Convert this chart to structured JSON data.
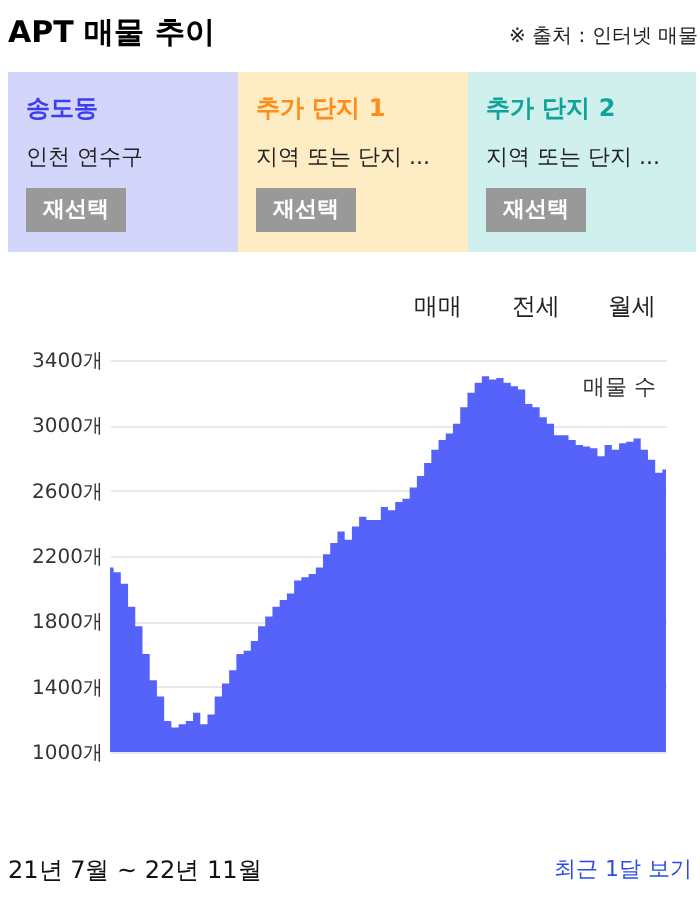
{
  "chart_data": {
    "type": "area",
    "title": "APT 매물 추이",
    "categories": [
      null,
      null,
      null,
      null,
      null,
      null,
      null,
      null,
      null,
      null,
      null,
      null,
      null,
      null,
      null,
      null,
      null,
      null,
      null,
      null,
      null,
      null,
      null,
      null,
      null,
      null,
      null,
      null,
      null,
      null,
      null,
      null,
      null,
      null,
      null,
      null,
      null,
      null,
      null,
      null,
      null,
      null,
      null,
      null,
      null,
      null,
      null,
      null,
      null,
      null,
      null,
      null,
      null,
      null,
      null,
      null,
      null,
      null,
      null,
      null,
      null,
      null,
      null,
      null,
      null,
      null,
      null,
      null,
      null,
      null,
      null,
      null,
      null,
      null,
      null,
      null,
      null,
      null
    ],
    "series": [
      {
        "name": "매물 수",
        "color": "#5563fa",
        "values": [
          2130,
          2100,
          2030,
          1890,
          1770,
          1600,
          1440,
          1340,
          1190,
          1150,
          1170,
          1190,
          1240,
          1170,
          1230,
          1340,
          1420,
          1500,
          1600,
          1620,
          1680,
          1770,
          1830,
          1890,
          1930,
          1970,
          2050,
          2070,
          2090,
          2130,
          2210,
          2280,
          2350,
          2300,
          2380,
          2440,
          2420,
          2420,
          2500,
          2480,
          2530,
          2550,
          2620,
          2690,
          2770,
          2850,
          2910,
          2950,
          3010,
          3110,
          3200,
          3260,
          3300,
          3280,
          3290,
          3260,
          3240,
          3220,
          3130,
          3110,
          3050,
          3010,
          2940,
          2940,
          2910,
          2880,
          2870,
          2860,
          2810,
          2880,
          2850,
          2890,
          2900,
          2920,
          2850,
          2790,
          2710,
          2730
        ]
      }
    ],
    "ylim": [
      1000,
      3400
    ],
    "yticks": [
      {
        "value": 1000,
        "label": "1000개"
      },
      {
        "value": 1400,
        "label": "1400개"
      },
      {
        "value": 1800,
        "label": "1800개"
      },
      {
        "value": 2200,
        "label": "2200개"
      },
      {
        "value": 2600,
        "label": "2600개"
      },
      {
        "value": 3000,
        "label": "3000개"
      },
      {
        "value": 3400,
        "label": "3400개"
      }
    ],
    "grid": "y",
    "tick_labels": "y",
    "annotations": [
      "※ 출처 : 인터넷 매물",
      "송도동",
      "인천 연수구",
      "재선택",
      "추가 단지 1",
      "지역 또는 단지 ...",
      "재선택",
      "추가 단지 2",
      "지역 또는 단지 ...",
      "재선택",
      "매매",
      "전세",
      "월세",
      "21년 7월 ~ 22년 11월",
      "최근 1달 보기"
    ]
  }
}
